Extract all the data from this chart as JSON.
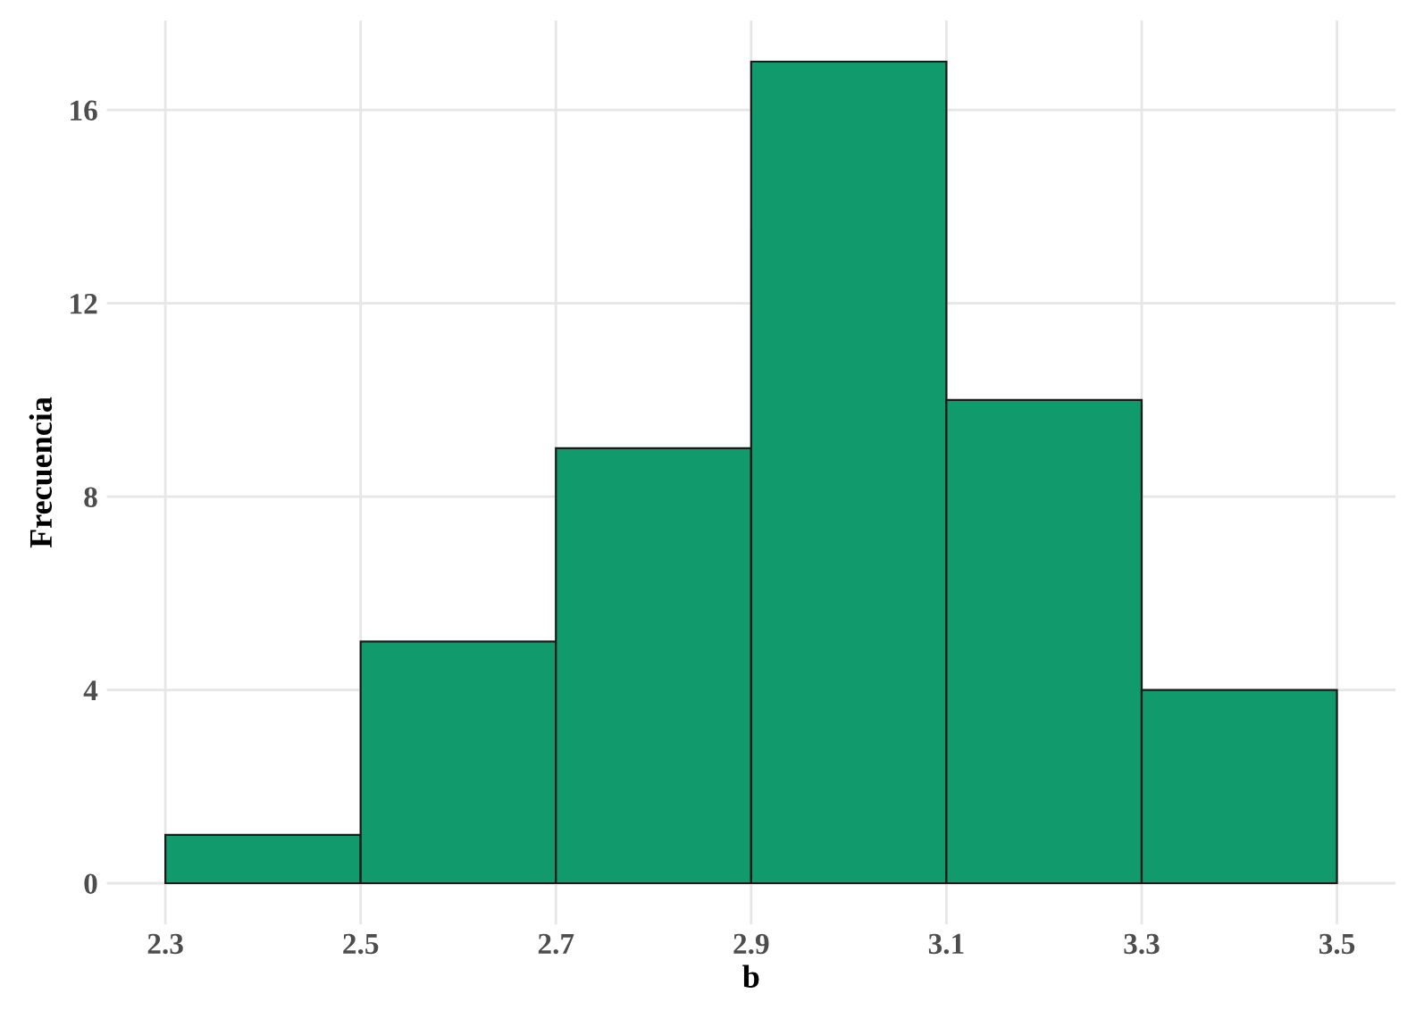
{
  "chart_data": {
    "type": "histogram",
    "xlabel": "b",
    "ylabel": "Frecuencia",
    "bins": [
      2.3,
      2.5,
      2.7,
      2.9,
      3.1,
      3.3,
      3.5
    ],
    "values": [
      1,
      5,
      9,
      17,
      10,
      4
    ],
    "color": "#119a6b",
    "xlim": [
      2.24,
      3.56
    ],
    "ylim": [
      -0.85,
      17.85
    ],
    "xticks": [
      2.3,
      2.5,
      2.7,
      2.9,
      3.1,
      3.3,
      3.5
    ],
    "yticks": [
      0,
      4,
      8,
      12,
      16
    ],
    "grid": true,
    "legend": false
  }
}
